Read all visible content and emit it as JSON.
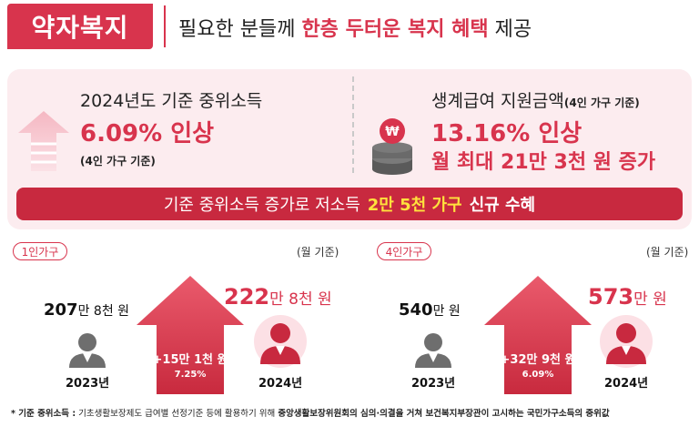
{
  "header": {
    "tag": "약자복지",
    "pre": "필요한 분들께",
    "highlight": "한층 두터운 복지 혜택",
    "post": "제공"
  },
  "left": {
    "subtitle": "2024년도 기준 중위소득",
    "headline": "6.09% 인상",
    "note": "(4인 가구 기준)"
  },
  "right": {
    "subtitle": "생계급여 지원금액",
    "subtitle_note": "(4인 가구 기준)",
    "headline": "13.16% 인상",
    "line2": "월 최대 21만 3천 원 증가"
  },
  "banner": {
    "pre": "기준 중위소득 증가로 저소득",
    "highlight": "2만 5천 가구",
    "post": "신규 수혜"
  },
  "one_person": {
    "label": "1인가구",
    "unit": "(월 기준)",
    "y2023_main": "207",
    "y2023_rest": "만 8천 원",
    "y2024_main": "222",
    "y2024_rest": "만 8천 원",
    "increase": "+15만 1천 원",
    "percent": "7.25%",
    "year_2023": "2023년",
    "year_2024": "2024년"
  },
  "four_person": {
    "label": "4인가구",
    "unit": "(월 기준)",
    "y2023_main": "540",
    "y2023_rest": "만 원",
    "y2024_main": "573",
    "y2024_rest": "만 원",
    "increase": "+32만 9천 원",
    "percent": "6.09%",
    "year_2023": "2023년",
    "year_2024": "2024년"
  },
  "footnote": {
    "term": "* 기준 중위소득 :",
    "text1": "기초생활보장제도 급여별 선정기준 등에 활용하기 위해",
    "bold": "중앙생활보장위원회의 심의·의결을 거쳐 보건복지부장관이 고시하는 국민가구소득의 중위값"
  },
  "colors": {
    "accent": "#d8344d",
    "banner": "#c8293f",
    "highlight_yellow": "#ffe23d",
    "panel": "#fcecef",
    "person_gray": "#6e6e6e"
  },
  "icons": [
    "up-arrow-icon",
    "coin-stack-icon",
    "house-arrow-icon",
    "person-icon"
  ]
}
